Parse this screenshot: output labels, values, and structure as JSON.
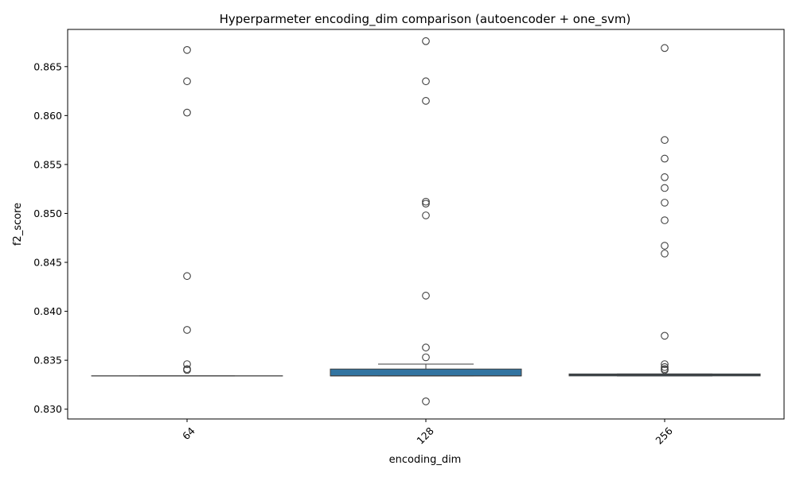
{
  "chart_data": {
    "type": "box",
    "title": "Hyperparmeter encoding_dim comparison (autoencoder + one_svm)",
    "xlabel": "encoding_dim",
    "ylabel": "f2_score",
    "categories": [
      "64",
      "128",
      "256"
    ],
    "ylim": [
      0.829,
      0.8688
    ],
    "yticks": [
      0.83,
      0.835,
      0.84,
      0.845,
      0.85,
      0.855,
      0.86,
      0.865
    ],
    "ytick_labels": [
      "0.830",
      "0.835",
      "0.840",
      "0.845",
      "0.850",
      "0.855",
      "0.860",
      "0.865"
    ],
    "xtick_rotation": -45,
    "grid": false,
    "box_color": "#3274a1",
    "boxes": [
      {
        "category": "64",
        "q1": 0.8334,
        "median": 0.8334,
        "q3": 0.8334,
        "whisker_low": 0.8334,
        "whisker_high": 0.8334,
        "outliers": [
          0.8667,
          0.8635,
          0.8603,
          0.8436,
          0.8381,
          0.8346,
          0.8341,
          0.834
        ]
      },
      {
        "category": "128",
        "q1": 0.8334,
        "median": 0.8334,
        "q3": 0.8341,
        "whisker_low": 0.8334,
        "whisker_high": 0.8346,
        "outliers": [
          0.8676,
          0.8635,
          0.8615,
          0.8512,
          0.851,
          0.8498,
          0.8416,
          0.8363,
          0.8353,
          0.8308
        ]
      },
      {
        "category": "256",
        "q1": 0.8334,
        "median": 0.8335,
        "q3": 0.8336,
        "whisker_low": 0.8334,
        "whisker_high": 0.8336,
        "outliers": [
          0.8669,
          0.8575,
          0.8556,
          0.8537,
          0.8526,
          0.8511,
          0.8493,
          0.8467,
          0.8459,
          0.8375,
          0.8346,
          0.8343,
          0.8341,
          0.834
        ]
      }
    ]
  }
}
